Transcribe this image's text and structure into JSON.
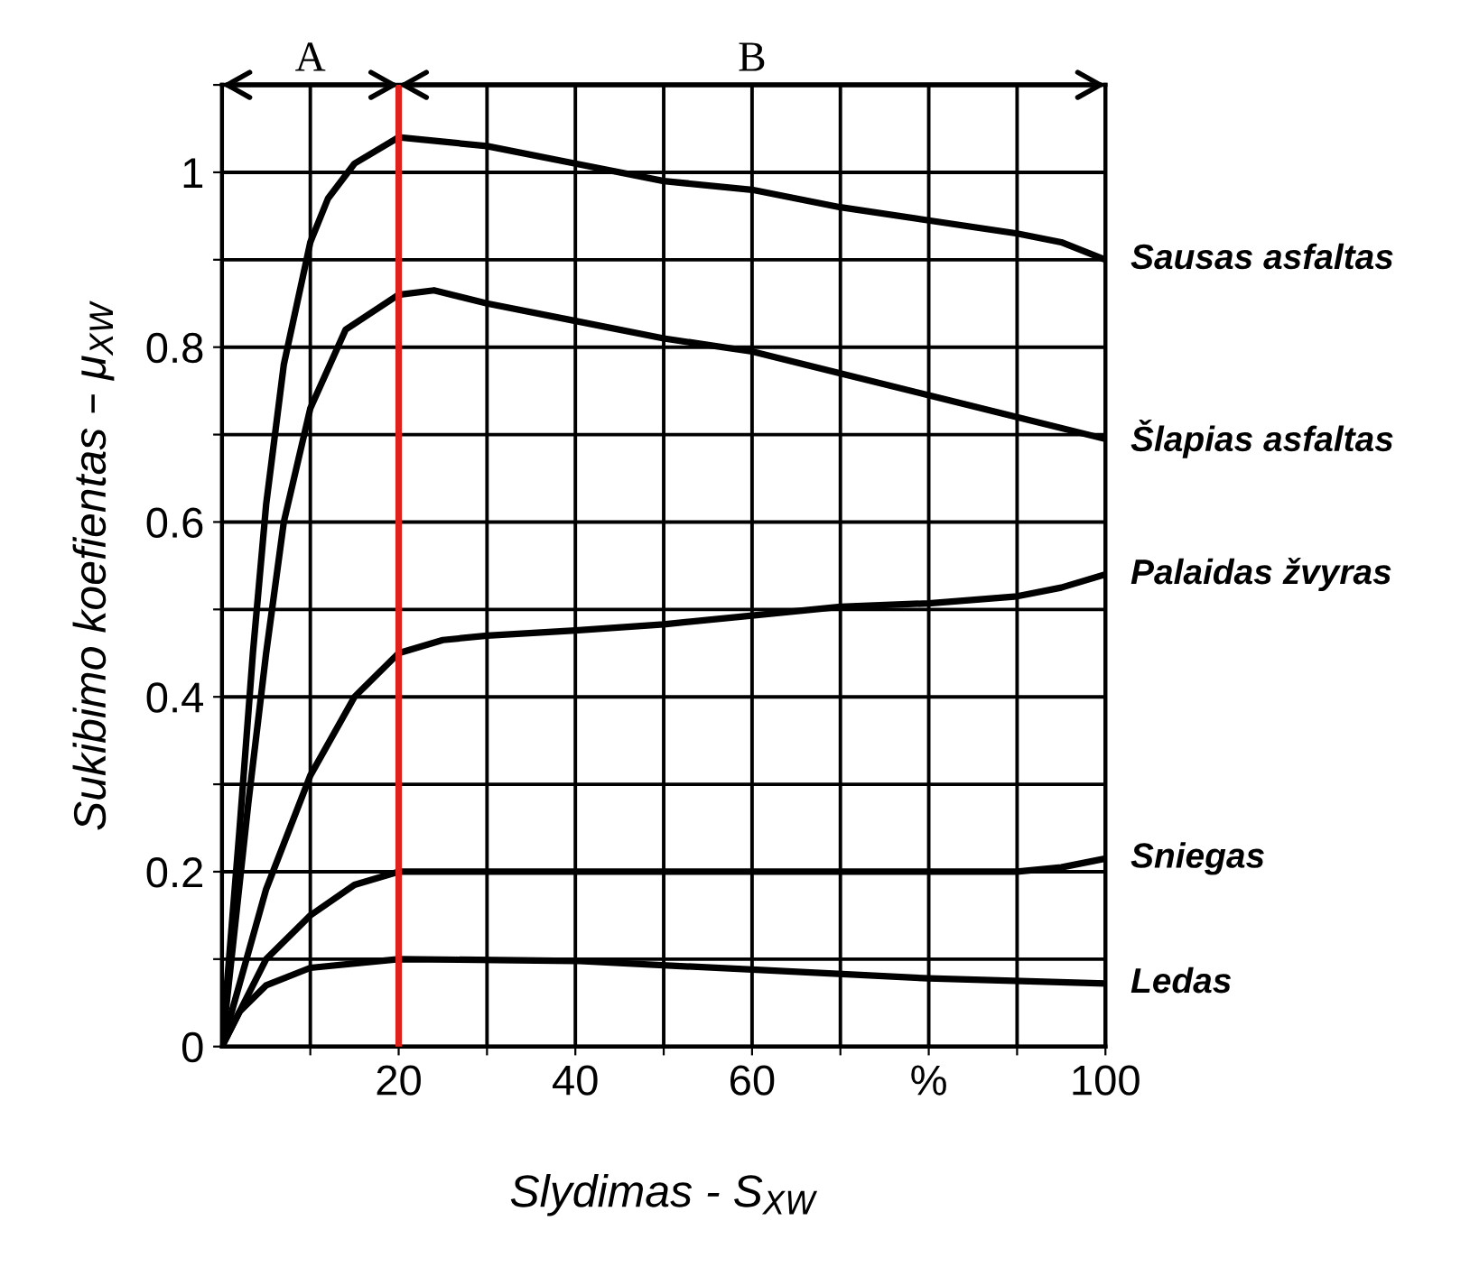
{
  "chart_data": {
    "type": "line",
    "xlabel": "Slydimas - S$_{XW}$",
    "ylabel": "Sukibimo koefientas – μ$_{XW}$",
    "xlim": [
      0,
      100
    ],
    "ylim": [
      0,
      1.1
    ],
    "xticks": [
      {
        "value": 10,
        "label": null
      },
      20,
      {
        "value": 30,
        "label": null
      },
      40,
      {
        "value": 50,
        "label": null
      },
      60,
      {
        "value": 70,
        "label": null
      },
      {
        "value": 80,
        "label": "%"
      },
      {
        "value": 90,
        "label": null
      },
      100
    ],
    "yticks": [
      0,
      {
        "value": 0.1,
        "label": null
      },
      0.2,
      {
        "value": 0.3,
        "label": null
      },
      0.4,
      {
        "value": 0.5,
        "label": null
      },
      0.6,
      {
        "value": 0.7,
        "label": null
      },
      0.8,
      {
        "value": 0.9,
        "label": null
      },
      1,
      {
        "value": 1.1,
        "label": null
      }
    ],
    "grid": true,
    "legend": false,
    "marker": "none",
    "line_style": "solid",
    "series": [
      {
        "name": "Sausas asfaltas",
        "color": "#000000",
        "x": [
          0,
          2,
          3.5,
          5,
          7,
          10,
          12,
          15,
          20,
          30,
          40,
          50,
          60,
          70,
          80,
          90,
          95,
          100
        ],
        "values": [
          0,
          0.25,
          0.45,
          0.62,
          0.78,
          0.92,
          0.97,
          1.01,
          1.04,
          1.03,
          1.01,
          0.99,
          0.98,
          0.96,
          0.945,
          0.93,
          0.92,
          0.9
        ]
      },
      {
        "name": "Šlapias asfaltas",
        "color": "#000000",
        "x": [
          0,
          3,
          5,
          7,
          10,
          14,
          20,
          24,
          30,
          40,
          50,
          60,
          70,
          80,
          90,
          100
        ],
        "values": [
          0,
          0.28,
          0.45,
          0.6,
          0.73,
          0.82,
          0.86,
          0.865,
          0.85,
          0.83,
          0.81,
          0.795,
          0.77,
          0.745,
          0.72,
          0.695
        ]
      },
      {
        "name": "Palaidas žvyras",
        "color": "#000000",
        "x": [
          0,
          5,
          10,
          15,
          20,
          25,
          30,
          40,
          50,
          60,
          70,
          80,
          90,
          95,
          100
        ],
        "values": [
          0,
          0.18,
          0.31,
          0.4,
          0.45,
          0.465,
          0.47,
          0.476,
          0.483,
          0.493,
          0.503,
          0.507,
          0.515,
          0.525,
          0.54
        ]
      },
      {
        "name": "Sniegas",
        "color": "#000000",
        "x": [
          0,
          5,
          10,
          15,
          20,
          40,
          60,
          80,
          90,
          95,
          100
        ],
        "values": [
          0,
          0.1,
          0.15,
          0.185,
          0.2,
          0.2,
          0.2,
          0.2,
          0.2,
          0.205,
          0.215
        ]
      },
      {
        "name": "Ledas",
        "color": "#000000",
        "x": [
          0,
          2,
          5,
          10,
          20,
          40,
          60,
          80,
          100
        ],
        "values": [
          0,
          0.04,
          0.07,
          0.09,
          0.1,
          0.098,
          0.088,
          0.078,
          0.072
        ]
      }
    ],
    "ref_lines": [
      {
        "axis": "x",
        "value": 20,
        "color": "#e0201a",
        "line_style": "solid"
      }
    ],
    "annotations": [
      "A",
      "B"
    ]
  }
}
